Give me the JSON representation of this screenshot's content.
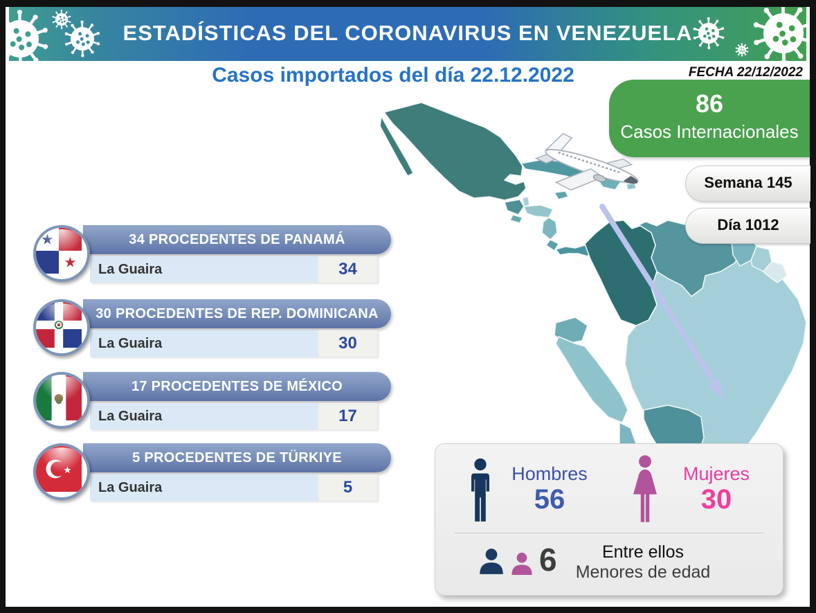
{
  "banner": {
    "title": "ESTADÍSTICAS DEL CORONAVIRUS EN VENEZUELA"
  },
  "date_label": "FECHA 22/12/2022",
  "page_title": "Casos importados del día 22.12.2022",
  "total": {
    "value": "86",
    "label": "Casos Internacionales"
  },
  "badges": [
    {
      "label": "Semana 145"
    },
    {
      "label": "Día 1012"
    }
  ],
  "countries": [
    {
      "flag": "panama-flag-icon",
      "header": "34 PROCEDENTES DE PANAMÁ",
      "city": "La Guaira",
      "count": "34"
    },
    {
      "flag": "dominican-republic-flag-icon",
      "header": "30 PROCEDENTES DE REP. DOMINICANA",
      "city": "La Guaira",
      "count": "30"
    },
    {
      "flag": "mexico-flag-icon",
      "header": "17 PROCEDENTES DE MÉXICO",
      "city": "La Guaira",
      "count": "17"
    },
    {
      "flag": "turkiye-flag-icon",
      "header": "5 PROCEDENTES DE TÜRKIYE",
      "city": "La Guaira",
      "count": "5"
    }
  ],
  "gender": {
    "men_label": "Hombres",
    "men_value": "56",
    "women_label": "Mujeres",
    "women_value": "30",
    "minors_value": "6",
    "minors_caption_line1": "Entre ellos",
    "minors_caption_line2": "Menores de edad"
  },
  "colors": {
    "banner_teal": "#3f9e90",
    "banner_blue": "#2d6cb4",
    "banner_green": "#42a04f",
    "accent_green": "#4aa14e",
    "title_blue": "#2673c5",
    "bar_blue_top": "#91a6ca",
    "bar_blue_bottom": "#5d73a7",
    "city_row_blue": "#dbe9f6",
    "count_navy": "#2a4a9e",
    "men_icon_navy": "#17365c",
    "men_text_blue": "#3d51a6",
    "women_icon_pink": "#b2549b",
    "women_text_pink": "#e93ba2",
    "map_dark_teal": "#3e7d79",
    "map_light_teal": "#a5cfd8",
    "arrow_lavender": "#b9c3ec"
  }
}
